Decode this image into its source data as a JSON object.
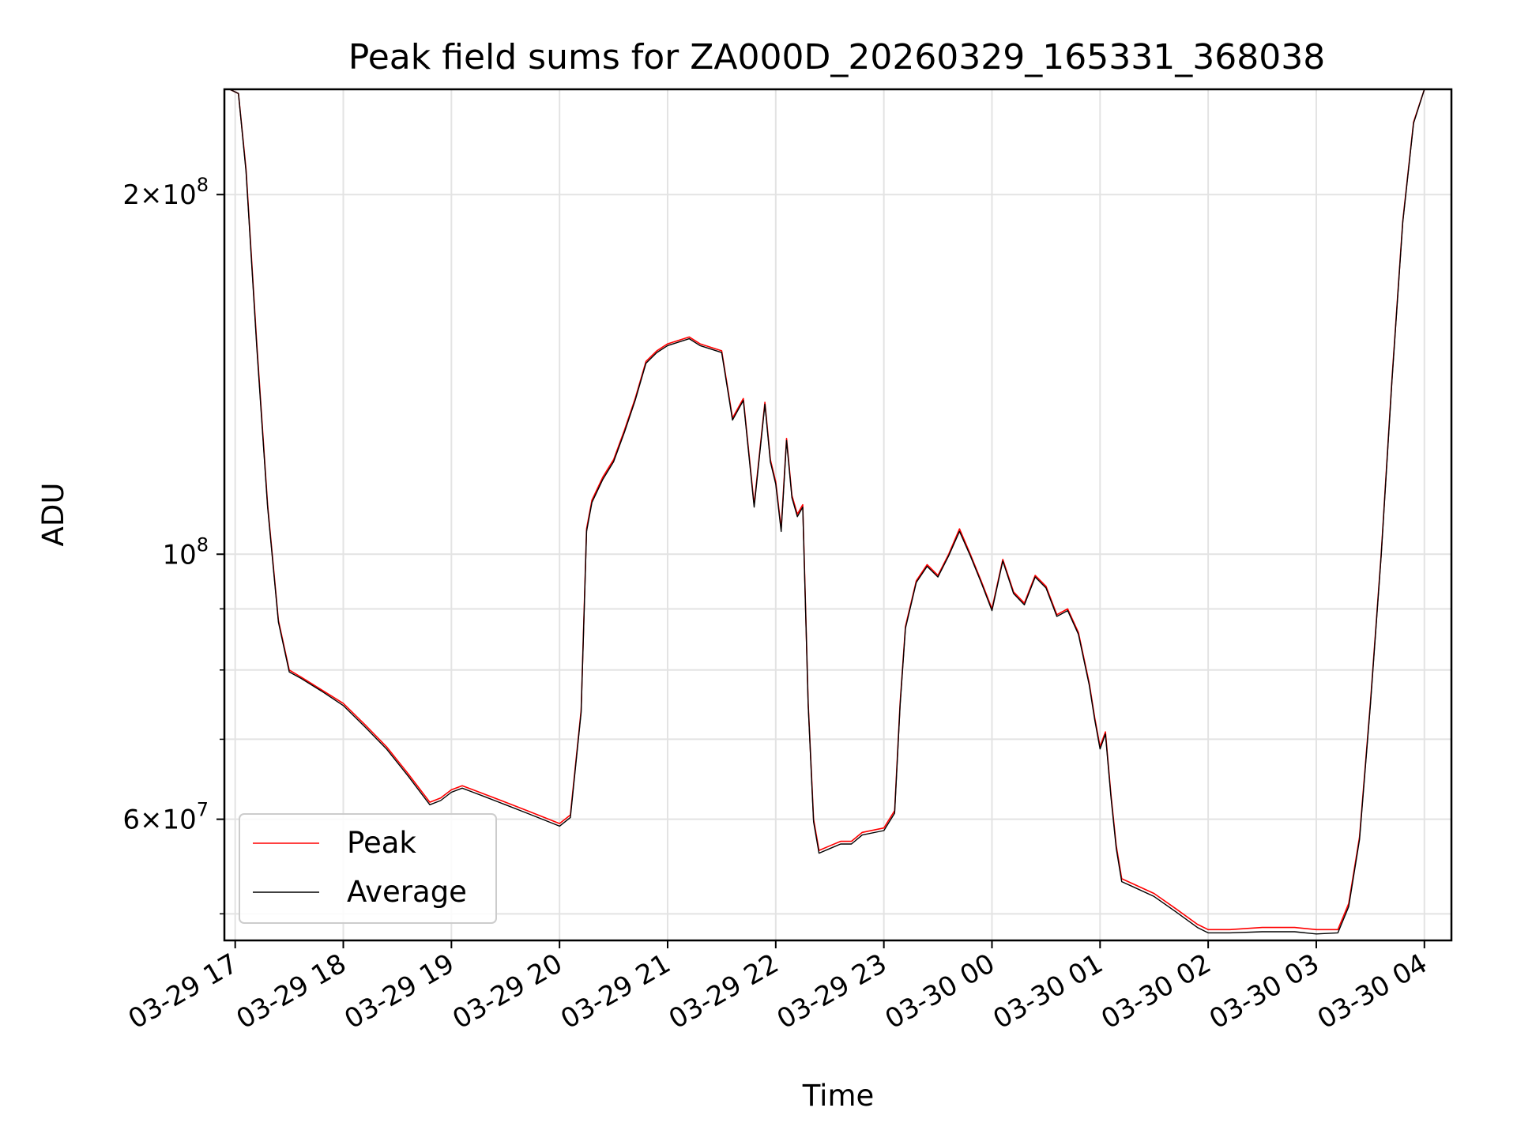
{
  "chart_data": {
    "type": "line",
    "title": "Peak field sums for ZA000D_20260329_165331_368038",
    "xlabel": "Time",
    "ylabel": "ADU",
    "y_scale": "log",
    "ylim": [
      47500000,
      245000000
    ],
    "xlim_hours": [
      -0.1,
      11.25
    ],
    "x_origin": "03-29 17:00",
    "grid": true,
    "legend_position": "lower-left",
    "x_ticks": [
      {
        "label": "03-29 17",
        "hour": 0
      },
      {
        "label": "03-29 18",
        "hour": 1
      },
      {
        "label": "03-29 19",
        "hour": 2
      },
      {
        "label": "03-29 20",
        "hour": 3
      },
      {
        "label": "03-29 21",
        "hour": 4
      },
      {
        "label": "03-29 22",
        "hour": 5
      },
      {
        "label": "03-29 23",
        "hour": 6
      },
      {
        "label": "03-30 00",
        "hour": 7
      },
      {
        "label": "03-30 01",
        "hour": 8
      },
      {
        "label": "03-30 02",
        "hour": 9
      },
      {
        "label": "03-30 03",
        "hour": 10
      },
      {
        "label": "03-30 04",
        "hour": 11
      }
    ],
    "y_ticks": [
      {
        "base": "2",
        "exp": "8",
        "value": 200000000
      },
      {
        "base": "",
        "exp": "8",
        "value": 100000000
      },
      {
        "base": "6",
        "exp": "7",
        "value": 60000000
      }
    ],
    "y_minor_ticks": [
      50000000,
      70000000,
      80000000,
      90000000
    ],
    "series": [
      {
        "name": "Peak",
        "color": "#ff0000",
        "x": [
          -0.05,
          0.03,
          0.1,
          0.2,
          0.3,
          0.4,
          0.5,
          0.6,
          0.8,
          1.0,
          1.2,
          1.4,
          1.6,
          1.8,
          1.9,
          2.0,
          2.1,
          2.2,
          2.3,
          2.5,
          2.7,
          2.9,
          3.0,
          3.1,
          3.2,
          3.25,
          3.3,
          3.4,
          3.5,
          3.6,
          3.7,
          3.8,
          3.9,
          4.0,
          4.1,
          4.2,
          4.3,
          4.4,
          4.5,
          4.6,
          4.7,
          4.8,
          4.9,
          4.95,
          5.0,
          5.05,
          5.1,
          5.15,
          5.2,
          5.25,
          5.3,
          5.35,
          5.4,
          5.5,
          5.6,
          5.7,
          5.8,
          6.0,
          6.1,
          6.15,
          6.2,
          6.3,
          6.4,
          6.5,
          6.6,
          6.7,
          6.8,
          6.9,
          7.0,
          7.1,
          7.2,
          7.3,
          7.4,
          7.5,
          7.6,
          7.7,
          7.8,
          7.9,
          7.95,
          8.0,
          8.05,
          8.1,
          8.15,
          8.2,
          8.3,
          8.5,
          8.7,
          8.9,
          9.0,
          9.2,
          9.5,
          9.8,
          10.0,
          10.2,
          10.3,
          10.4,
          10.5,
          10.6,
          10.7,
          10.8,
          10.9,
          11.0,
          11.05
        ],
        "values": [
          245000000,
          243000000,
          210000000,
          150000000,
          110000000,
          88000000,
          80000000,
          79000000,
          77000000,
          75000000,
          72000000,
          69000000,
          65500000,
          62000000,
          62500000,
          63500000,
          64000000,
          63500000,
          63000000,
          62000000,
          61000000,
          60000000,
          59500000,
          60500000,
          74000000,
          105000000,
          111000000,
          116000000,
          120000000,
          127000000,
          135000000,
          145000000,
          148000000,
          150000000,
          151000000,
          152000000,
          150000000,
          149000000,
          148000000,
          130000000,
          135000000,
          110000000,
          134000000,
          120000000,
          115000000,
          105000000,
          125000000,
          112000000,
          108000000,
          110000000,
          75000000,
          60000000,
          56500000,
          57000000,
          57500000,
          57500000,
          58500000,
          59000000,
          61000000,
          75000000,
          87000000,
          95000000,
          98000000,
          96000000,
          100000000,
          105000000,
          100000000,
          95000000,
          90000000,
          99000000,
          93000000,
          91000000,
          96000000,
          94000000,
          89000000,
          90000000,
          86000000,
          78000000,
          73000000,
          69000000,
          71000000,
          63000000,
          57000000,
          53500000,
          53000000,
          52000000,
          50500000,
          49000000,
          48500000,
          48500000,
          48700000,
          48700000,
          48500000,
          48500000,
          51000000,
          58000000,
          75000000,
          100000000,
          140000000,
          190000000,
          230000000,
          245000000,
          245000000
        ]
      },
      {
        "name": "Average",
        "color": "#000000",
        "x": [
          -0.05,
          0.03,
          0.1,
          0.2,
          0.3,
          0.4,
          0.5,
          0.6,
          0.8,
          1.0,
          1.2,
          1.4,
          1.6,
          1.8,
          1.9,
          2.0,
          2.1,
          2.2,
          2.3,
          2.5,
          2.7,
          2.9,
          3.0,
          3.1,
          3.2,
          3.25,
          3.3,
          3.4,
          3.5,
          3.6,
          3.7,
          3.8,
          3.9,
          4.0,
          4.1,
          4.2,
          4.3,
          4.4,
          4.5,
          4.6,
          4.7,
          4.8,
          4.9,
          4.95,
          5.0,
          5.05,
          5.1,
          5.15,
          5.2,
          5.25,
          5.3,
          5.35,
          5.4,
          5.5,
          5.6,
          5.7,
          5.8,
          6.0,
          6.1,
          6.15,
          6.2,
          6.3,
          6.4,
          6.5,
          6.6,
          6.7,
          6.8,
          6.9,
          7.0,
          7.1,
          7.2,
          7.3,
          7.4,
          7.5,
          7.6,
          7.7,
          7.8,
          7.9,
          7.95,
          8.0,
          8.05,
          8.1,
          8.15,
          8.2,
          8.3,
          8.5,
          8.7,
          8.9,
          9.0,
          9.2,
          9.5,
          9.8,
          10.0,
          10.2,
          10.3,
          10.4,
          10.5,
          10.6,
          10.7,
          10.8,
          10.9,
          11.0,
          11.05
        ],
        "values": [
          245000000,
          243000000,
          209000000,
          149000000,
          109500000,
          87700000,
          79700000,
          78800000,
          76800000,
          74700000,
          71700000,
          68700000,
          65200000,
          61700000,
          62200000,
          63200000,
          63700000,
          63200000,
          62700000,
          61700000,
          60700000,
          59700000,
          59200000,
          60200000,
          73700000,
          104500000,
          110500000,
          115500000,
          119500000,
          126500000,
          134500000,
          144500000,
          147500000,
          149500000,
          150500000,
          151500000,
          149500000,
          148500000,
          147500000,
          129500000,
          134500000,
          109500000,
          133500000,
          119500000,
          114500000,
          104500000,
          124500000,
          111500000,
          107500000,
          109500000,
          74700000,
          59700000,
          56200000,
          56700000,
          57200000,
          57200000,
          58200000,
          58700000,
          60700000,
          74700000,
          86700000,
          94700000,
          97700000,
          95700000,
          99700000,
          104500000,
          99700000,
          94700000,
          89700000,
          98700000,
          92700000,
          90700000,
          95700000,
          93700000,
          88700000,
          89700000,
          85700000,
          77700000,
          72700000,
          68700000,
          70700000,
          62700000,
          56700000,
          53200000,
          52700000,
          51700000,
          50200000,
          48700000,
          48200000,
          48200000,
          48300000,
          48300000,
          48100000,
          48200000,
          50700000,
          57700000,
          74700000,
          99700000,
          139500000,
          189500000,
          229500000,
          245000000,
          245000000
        ]
      }
    ]
  }
}
